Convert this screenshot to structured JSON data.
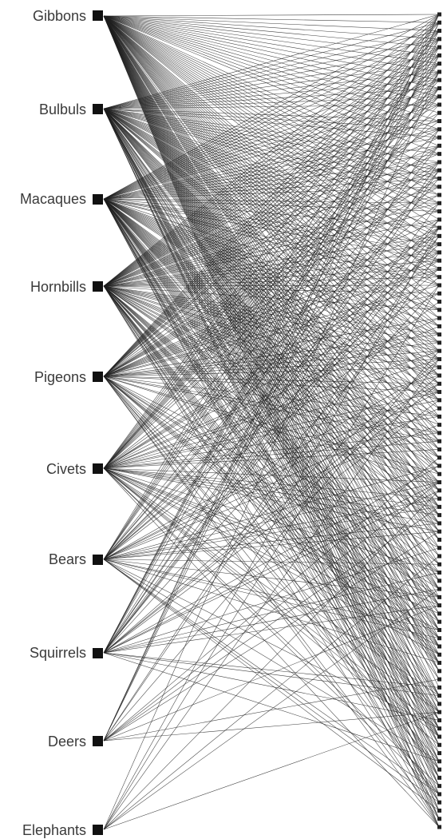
{
  "diagram": {
    "type": "bipartite-network",
    "colors": {
      "background": "#ffffff",
      "node": "#111111",
      "link": "#1e1e1e",
      "label": "#3a3a3a"
    },
    "frugivore_groups": [
      {
        "id": "gibbons",
        "label": "Gibbons",
        "links": 95
      },
      {
        "id": "bulbuls",
        "label": "Bulbuls",
        "links": 80
      },
      {
        "id": "macaques",
        "label": "Macaques",
        "links": 80
      },
      {
        "id": "hornbills",
        "label": "Hornbills",
        "links": 75
      },
      {
        "id": "pigeons",
        "label": "Pigeons",
        "links": 55
      },
      {
        "id": "civets",
        "label": "Civets",
        "links": 50
      },
      {
        "id": "bears",
        "label": "Bears",
        "links": 35
      },
      {
        "id": "squirrels",
        "label": "Squirrels",
        "links": 28
      },
      {
        "id": "deers",
        "label": "Deers",
        "links": 14
      },
      {
        "id": "elephants",
        "label": "Elephants",
        "links": 8
      }
    ],
    "plant_species_count": 100
  }
}
